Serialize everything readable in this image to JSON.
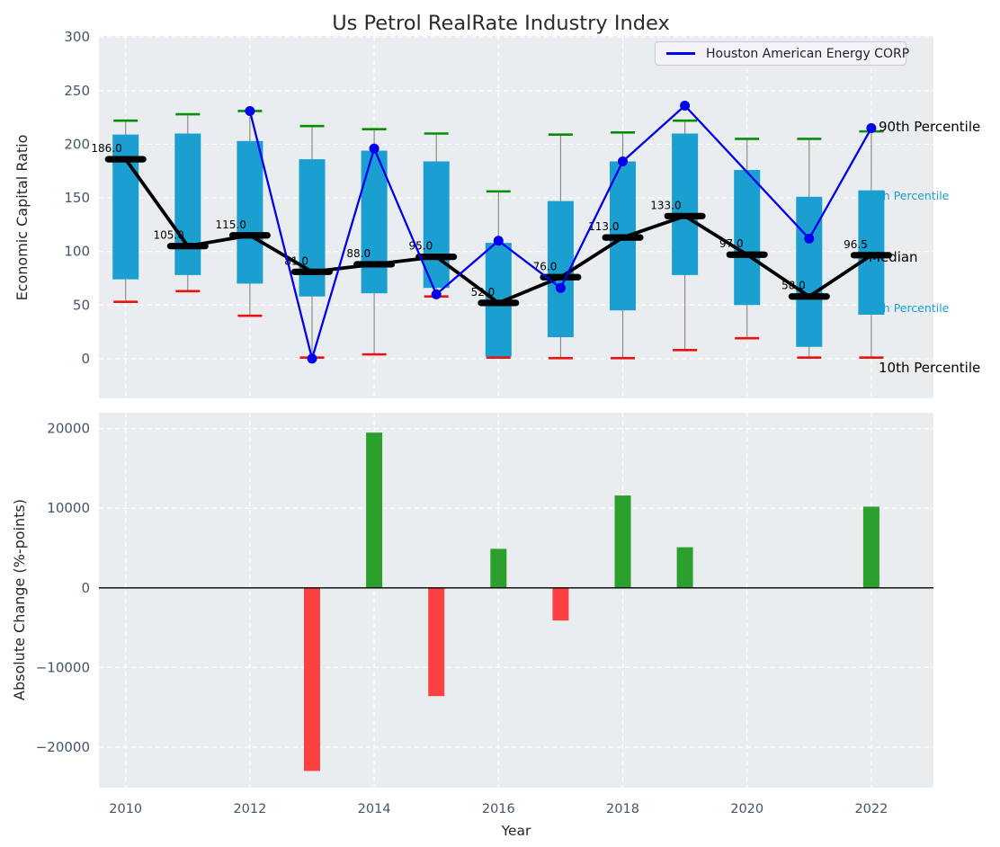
{
  "title": "Us Petrol RealRate Industry Index",
  "axes": {
    "top_ylabel": "Economic Capital Ratio",
    "bottom_ylabel": "Absolute Change (%-points)",
    "xlabel": "Year"
  },
  "legend": {
    "label": "Houston American Energy CORP"
  },
  "colors": {
    "plot_bg": "#e9edf0",
    "grid": "#ffffff",
    "box": "#1a9fd0",
    "cap_high": "#068e06",
    "cap_low": "#ee1111",
    "whisker": "#848484",
    "median": "#000000",
    "houston": "#0000ee",
    "bar_up": "#2ca02c",
    "bar_down": "#fb4141",
    "tick": "#44556a",
    "text": "#262626",
    "title": "#2b2b2b"
  },
  "chart_data": [
    {
      "type": "box-whisker-with-line",
      "title": "Us Petrol RealRate Industry Index",
      "ylabel": "Economic Capital Ratio",
      "ylim": [
        -37,
        301
      ],
      "xlim": [
        2009.57,
        2023.0
      ],
      "yticks": [
        0,
        50,
        100,
        150,
        200,
        250,
        300
      ],
      "xgrid_years": [
        2010,
        2012,
        2014,
        2016,
        2018,
        2020,
        2022
      ],
      "grid": true,
      "legend_position": "upper right",
      "years": [
        2010,
        2011,
        2012,
        2013,
        2014,
        2015,
        2016,
        2017,
        2018,
        2019,
        2020,
        2021,
        2022
      ],
      "p90": [
        222,
        228,
        231,
        217,
        214,
        210,
        156,
        209,
        211,
        222,
        205,
        205,
        212
      ],
      "p75": [
        209,
        210,
        203,
        186,
        194,
        184,
        108,
        147,
        184,
        210,
        176,
        151,
        157
      ],
      "median": [
        186,
        105,
        115,
        81,
        88,
        95,
        52,
        76,
        113,
        133,
        97,
        58,
        96.5
      ],
      "median_labels": [
        "186.0",
        "105.0",
        "115.0",
        "81.0",
        "88.0",
        "95.0",
        "52.0",
        "76.0",
        "113.0",
        "133.0",
        "97.0",
        "58.0",
        "96.5"
      ],
      "p25": [
        74,
        78,
        70,
        58,
        61,
        66,
        2,
        20,
        45,
        78,
        50,
        11,
        41
      ],
      "p10": [
        53,
        63,
        40,
        1,
        4,
        58,
        1,
        0.5,
        0.5,
        8,
        19,
        1,
        1
      ],
      "series": [
        {
          "name": "Houston American Energy CORP",
          "x": [
            2012,
            2013,
            2014,
            2015,
            2016,
            2017,
            2018,
            2019,
            2021,
            2022
          ],
          "y": [
            231,
            0,
            196,
            60,
            110,
            66,
            184,
            236,
            112,
            215
          ]
        }
      ],
      "right_labels": [
        {
          "text": "90th Percentile",
          "kind": "black"
        },
        {
          "text": "75th Percentile",
          "kind": "cyan"
        },
        {
          "text": "Median",
          "kind": "black"
        },
        {
          "text": "25th Percentile",
          "kind": "cyan"
        },
        {
          "text": "10th Percentile",
          "kind": "black"
        }
      ]
    },
    {
      "type": "bar",
      "ylabel": "Absolute Change (%-points)",
      "xlabel": "Year",
      "ylim": [
        -25100,
        22000
      ],
      "yticks": [
        20000,
        10000,
        0,
        -10000,
        -20000
      ],
      "ytick_labels": [
        "20000",
        "10000",
        "0",
        "−10000",
        "−20000"
      ],
      "xtick_years": [
        2010,
        2012,
        2014,
        2016,
        2018,
        2020,
        2022
      ],
      "grid": true,
      "categories": [
        2013,
        2014,
        2015,
        2016,
        2017,
        2018,
        2019,
        2022
      ],
      "values": [
        -23000,
        19500,
        -13600,
        4900,
        -4100,
        11600,
        5100,
        10200
      ]
    }
  ]
}
